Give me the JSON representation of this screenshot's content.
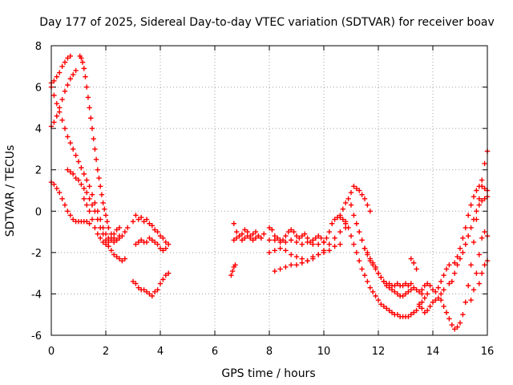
{
  "chart_data": {
    "type": "scatter",
    "title": "Day 177 of 2025, Sidereal Day-to-day VTEC variation (SDTVAR) for receiver boav",
    "xlabel": "GPS time / hours",
    "ylabel": "SDTVAR / TECUs",
    "xlim": [
      0,
      16
    ],
    "ylim": [
      -6,
      8
    ],
    "x_ticks": [
      "0",
      "2",
      "4",
      "6",
      "8",
      "10",
      "12",
      "14",
      "16"
    ],
    "y_ticks": [
      "-6",
      "-4",
      "-2",
      "0",
      "2",
      "4",
      "6",
      "8"
    ],
    "grid": true,
    "marker": "plus",
    "color": "#ff0000",
    "series": [
      {
        "x": [
          0.0,
          0.1,
          0.2,
          0.3,
          0.4,
          0.5,
          0.6,
          0.7
        ],
        "y": [
          6.2,
          6.3,
          6.5,
          6.7,
          7.0,
          7.2,
          7.4,
          7.5
        ]
      },
      {
        "x": [
          0.0,
          0.1,
          0.2,
          0.3,
          0.4,
          0.5,
          0.6,
          0.7,
          0.8,
          0.9
        ],
        "y": [
          4.1,
          4.3,
          4.6,
          5.0,
          5.4,
          5.8,
          6.1,
          6.4,
          6.6,
          6.8
        ]
      },
      {
        "x": [
          0.0,
          0.1,
          0.2,
          0.3,
          0.4,
          0.5,
          0.6,
          0.7,
          0.8,
          0.9,
          1.0,
          1.1,
          1.2,
          1.3,
          1.4,
          1.5,
          1.6,
          1.7,
          1.8,
          1.9,
          2.0,
          2.1,
          2.2,
          2.3,
          2.4,
          2.5
        ],
        "y": [
          6.0,
          5.6,
          5.2,
          4.8,
          4.4,
          4.0,
          3.6,
          3.3,
          3.0,
          2.7,
          2.4,
          2.1,
          1.8,
          1.5,
          1.2,
          0.8,
          0.4,
          0.0,
          -0.4,
          -0.8,
          -1.1,
          -1.3,
          -1.4,
          -1.5,
          -1.4,
          -1.2
        ]
      },
      {
        "x": [
          1.05,
          1.1,
          1.15,
          1.2,
          1.25,
          1.3,
          1.35,
          1.4,
          1.45,
          1.5,
          1.55,
          1.6,
          1.65,
          1.7,
          1.75,
          1.8,
          1.85,
          1.9,
          1.95,
          2.0,
          2.05,
          2.1,
          2.2,
          2.3,
          2.4,
          2.5,
          2.6,
          2.7,
          2.8
        ],
        "y": [
          7.5,
          7.4,
          7.2,
          6.9,
          6.5,
          6.0,
          5.5,
          5.0,
          4.5,
          4.0,
          3.5,
          3.0,
          2.5,
          2.0,
          1.6,
          1.2,
          0.8,
          0.4,
          0.1,
          -0.2,
          -0.5,
          -0.8,
          -1.1,
          -1.3,
          -1.4,
          -1.3,
          -1.2,
          -1.0,
          -0.8
        ]
      },
      {
        "x": [
          0.0,
          0.1,
          0.2,
          0.3,
          0.4,
          0.5,
          0.6,
          0.7,
          0.8,
          0.9,
          1.0,
          1.1,
          1.2,
          1.3,
          1.4
        ],
        "y": [
          1.4,
          1.3,
          1.1,
          0.9,
          0.6,
          0.3,
          0.0,
          -0.2,
          -0.4,
          -0.5,
          -0.5,
          -0.5,
          -0.5,
          -0.5,
          -0.6
        ]
      },
      {
        "x": [
          0.6,
          0.7,
          0.8,
          0.9,
          1.0,
          1.1,
          1.2,
          1.3,
          1.4,
          1.5,
          1.6,
          1.7,
          1.8,
          1.9,
          2.0,
          2.1,
          2.2,
          2.3,
          2.4,
          2.5,
          2.6,
          2.7
        ],
        "y": [
          2.0,
          1.9,
          1.8,
          1.6,
          1.5,
          1.3,
          1.1,
          0.9,
          0.6,
          0.3,
          0.0,
          -0.4,
          -0.8,
          -1.1,
          -1.4,
          -1.7,
          -1.9,
          -2.1,
          -2.2,
          -2.3,
          -2.4,
          -2.3
        ]
      },
      {
        "x": [
          1.2,
          1.3,
          1.4,
          1.5,
          1.6,
          1.7,
          1.8,
          1.9,
          2.0,
          2.1,
          2.2,
          2.3,
          2.4,
          2.5
        ],
        "y": [
          0.6,
          0.3,
          0.0,
          -0.4,
          -0.8,
          -1.1,
          -1.3,
          -1.5,
          -1.6,
          -1.5,
          -1.3,
          -1.1,
          -0.9,
          -0.8
        ]
      },
      {
        "x": [
          3.0,
          3.1,
          3.2,
          3.3,
          3.4,
          3.5,
          3.6,
          3.7,
          3.8,
          3.9,
          4.0,
          4.1,
          4.2,
          4.3
        ],
        "y": [
          -0.5,
          -0.2,
          -0.4,
          -0.3,
          -0.5,
          -0.4,
          -0.6,
          -0.7,
          -0.9,
          -1.0,
          -1.2,
          -1.3,
          -1.5,
          -1.6
        ]
      },
      {
        "x": [
          3.1,
          3.2,
          3.3,
          3.4,
          3.5,
          3.6,
          3.7,
          3.8,
          3.9,
          4.0,
          4.1,
          4.2
        ],
        "y": [
          -1.6,
          -1.5,
          -1.4,
          -1.5,
          -1.5,
          -1.3,
          -1.4,
          -1.5,
          -1.6,
          -1.8,
          -1.9,
          -1.8
        ]
      },
      {
        "x": [
          3.0,
          3.1,
          3.2,
          3.3,
          3.4,
          3.5,
          3.6,
          3.7,
          3.8,
          3.9,
          4.0,
          4.1,
          4.2,
          4.3
        ],
        "y": [
          -3.4,
          -3.5,
          -3.7,
          -3.8,
          -3.8,
          -3.9,
          -4.0,
          -4.1,
          -3.9,
          -3.8,
          -3.5,
          -3.3,
          -3.1,
          -3.0
        ]
      },
      {
        "x": [
          6.6,
          6.65,
          6.7,
          6.75
        ],
        "y": [
          -3.1,
          -2.9,
          -2.7,
          -2.6
        ]
      },
      {
        "x": [
          6.7,
          6.8,
          6.9,
          7.0,
          7.1,
          7.2,
          7.3,
          7.4,
          7.5,
          7.6,
          7.7,
          7.8
        ],
        "y": [
          -0.6,
          -1.0,
          -1.2,
          -1.1,
          -0.9,
          -1.0,
          -1.2,
          -1.1,
          -1.0,
          -1.2,
          -1.3,
          -1.1
        ]
      },
      {
        "x": [
          6.7,
          6.8,
          6.9,
          7.0,
          7.1,
          7.2,
          7.3,
          7.4,
          7.5,
          7.6,
          7.7
        ],
        "y": [
          -1.4,
          -1.3,
          -1.2,
          -1.4,
          -1.3,
          -1.2,
          -1.3,
          -1.4,
          -1.3,
          -1.2,
          -1.3
        ]
      },
      {
        "x": [
          8.0,
          8.1,
          8.2,
          8.3,
          8.4,
          8.5,
          8.6,
          8.7,
          8.8,
          8.9,
          9.0,
          9.1,
          9.2,
          9.3,
          9.4,
          9.5,
          9.6,
          9.7,
          9.8,
          9.9,
          10.0,
          10.1,
          10.2,
          10.3,
          10.4,
          10.5,
          10.6,
          10.7,
          10.8
        ],
        "y": [
          -0.8,
          -0.9,
          -1.2,
          -1.3,
          -1.4,
          -1.4,
          -1.2,
          -1.0,
          -0.9,
          -1.0,
          -1.2,
          -1.3,
          -1.2,
          -1.1,
          -1.3,
          -1.5,
          -1.4,
          -1.3,
          -1.2,
          -1.3,
          -1.5,
          -1.3,
          -1.0,
          -0.6,
          -0.4,
          -0.3,
          -0.2,
          -0.4,
          -0.6
        ]
      },
      {
        "x": [
          8.0,
          8.2,
          8.4,
          8.6,
          8.8,
          9.0,
          9.2,
          9.4,
          9.6,
          9.8,
          10.0
        ],
        "y": [
          -1.4,
          -1.4,
          -1.5,
          -1.5,
          -1.4,
          -1.5,
          -1.6,
          -1.5,
          -1.6,
          -1.6,
          -1.5
        ]
      },
      {
        "x": [
          8.2,
          8.4,
          8.6,
          8.8,
          9.0,
          9.2,
          9.4,
          9.6,
          9.8,
          10.0,
          10.2,
          10.4,
          10.6,
          10.8
        ],
        "y": [
          -2.9,
          -2.8,
          -2.7,
          -2.6,
          -2.6,
          -2.5,
          -2.4,
          -2.3,
          -2.1,
          -1.9,
          -1.6,
          -1.3,
          -1.0,
          -0.8
        ]
      },
      {
        "x": [
          8.0,
          8.2,
          8.4,
          8.6,
          8.8,
          9.0,
          9.2,
          9.4,
          9.6,
          9.8,
          10.0,
          10.2,
          10.4,
          10.6
        ],
        "y": [
          -2.0,
          -1.9,
          -1.8,
          -1.9,
          -2.1,
          -2.2,
          -2.3,
          -2.4,
          -2.2,
          -2.1,
          -2.0,
          -1.9,
          -1.7,
          -1.6
        ]
      },
      {
        "x": [
          10.6,
          10.7,
          10.8,
          10.9,
          11.0,
          11.1,
          11.2,
          11.3,
          11.4,
          11.5,
          11.6,
          11.7
        ],
        "y": [
          -0.3,
          0.1,
          0.4,
          0.6,
          0.9,
          1.2,
          1.1,
          1.0,
          0.8,
          0.6,
          0.3,
          0.0
        ]
      },
      {
        "x": [
          10.8,
          10.9,
          11.0,
          11.1,
          11.2,
          11.3,
          11.4,
          11.5,
          11.6,
          11.7,
          11.8,
          11.9,
          12.0,
          12.1,
          12.2,
          12.3,
          12.4,
          12.5,
          12.6,
          12.7,
          12.8,
          12.9,
          13.0,
          13.1,
          13.2,
          13.3,
          13.4,
          13.5,
          13.6,
          13.7,
          13.8
        ],
        "y": [
          -0.5,
          -0.8,
          -1.2,
          -1.6,
          -2.0,
          -2.4,
          -2.8,
          -3.1,
          -3.4,
          -3.7,
          -3.9,
          -4.1,
          -4.3,
          -4.5,
          -4.6,
          -4.7,
          -4.8,
          -4.9,
          -5.0,
          -5.0,
          -5.1,
          -5.1,
          -5.1,
          -5.1,
          -5.0,
          -4.9,
          -4.8,
          -4.6,
          -4.4,
          -4.2,
          -4.0
        ]
      },
      {
        "x": [
          11.0,
          11.1,
          11.2,
          11.3,
          11.4,
          11.5,
          11.6,
          11.7,
          11.8,
          11.9,
          12.0,
          12.1,
          12.2,
          12.3,
          12.4,
          12.5,
          12.6,
          12.7,
          12.8,
          12.9,
          13.0,
          13.1,
          13.2,
          13.3,
          13.4,
          13.5,
          13.6
        ],
        "y": [
          0.3,
          -0.2,
          -0.6,
          -1.0,
          -1.4,
          -1.8,
          -2.1,
          -2.4,
          -2.6,
          -2.8,
          -3.0,
          -3.2,
          -3.4,
          -3.6,
          -3.7,
          -3.8,
          -3.9,
          -4.0,
          -4.1,
          -4.1,
          -4.0,
          -3.9,
          -3.8,
          -3.7,
          -3.8,
          -3.9,
          -4.0
        ]
      },
      {
        "x": [
          11.5,
          11.6,
          11.7,
          11.8,
          11.9,
          12.0,
          12.1,
          12.2,
          12.3,
          12.4,
          12.5,
          12.6,
          12.7,
          12.8,
          12.9,
          13.0,
          13.1,
          13.2
        ],
        "y": [
          -1.8,
          -2.0,
          -2.3,
          -2.5,
          -2.7,
          -3.0,
          -3.2,
          -3.4,
          -3.5,
          -3.5,
          -3.6,
          -3.6,
          -3.5,
          -3.6,
          -3.6,
          -3.5,
          -3.6,
          -3.5
        ]
      },
      {
        "x": [
          13.2,
          13.3,
          13.4
        ],
        "y": [
          -2.3,
          -2.5,
          -2.8
        ]
      },
      {
        "x": [
          13.6,
          13.7,
          13.8,
          13.9,
          14.0,
          14.1,
          14.2,
          14.3,
          14.4,
          14.5,
          14.6
        ],
        "y": [
          -3.8,
          -3.6,
          -3.5,
          -3.6,
          -3.8,
          -3.9,
          -3.7,
          -3.4,
          -3.1,
          -2.8,
          -2.6
        ]
      },
      {
        "x": [
          13.5,
          13.6,
          13.7,
          13.8,
          13.9,
          14.0,
          14.1,
          14.2,
          14.3,
          14.4
        ],
        "y": [
          -4.5,
          -4.7,
          -4.9,
          -4.8,
          -4.6,
          -4.4,
          -4.3,
          -4.2,
          -4.0,
          -3.8
        ]
      },
      {
        "x": [
          14.3,
          14.4,
          14.5,
          14.6,
          14.7,
          14.8,
          14.9,
          15.0,
          15.1,
          15.2,
          15.3,
          15.4,
          15.5,
          15.6,
          15.7,
          15.8,
          15.9,
          16.0
        ],
        "y": [
          -4.3,
          -4.6,
          -4.9,
          -5.2,
          -5.5,
          -5.7,
          -5.6,
          -5.4,
          -5.0,
          -4.4,
          -3.6,
          -2.6,
          -1.5,
          -0.4,
          0.6,
          1.5,
          2.3,
          2.9
        ]
      },
      {
        "x": [
          14.8,
          14.9,
          15.0,
          15.1,
          15.2,
          15.3,
          15.4,
          15.5,
          15.6,
          15.7,
          15.8,
          15.9,
          16.0
        ],
        "y": [
          -2.5,
          -2.2,
          -1.8,
          -1.3,
          -0.8,
          -0.2,
          0.3,
          0.7,
          1.0,
          1.2,
          1.2,
          1.1,
          1.0
        ]
      },
      {
        "x": [
          14.6,
          14.7,
          14.8,
          14.9,
          15.0,
          15.1,
          15.2,
          15.3,
          15.4,
          15.5,
          15.6,
          15.7,
          15.8,
          15.9,
          16.0
        ],
        "y": [
          -3.5,
          -3.4,
          -3.0,
          -2.6,
          -2.3,
          -2.0,
          -1.6,
          -1.2,
          -0.8,
          -0.4,
          0.0,
          0.3,
          0.5,
          0.6,
          0.7
        ]
      },
      {
        "x": [
          15.4,
          15.5,
          15.6,
          15.7,
          15.8,
          15.9,
          16.0
        ],
        "y": [
          -4.3,
          -3.8,
          -3.0,
          -2.1,
          -1.3,
          -1.0,
          -1.2
        ]
      },
      {
        "x": [
          15.7,
          15.8,
          15.9,
          16.0
        ],
        "y": [
          -3.5,
          -3.0,
          -2.6,
          -2.4
        ]
      }
    ]
  }
}
